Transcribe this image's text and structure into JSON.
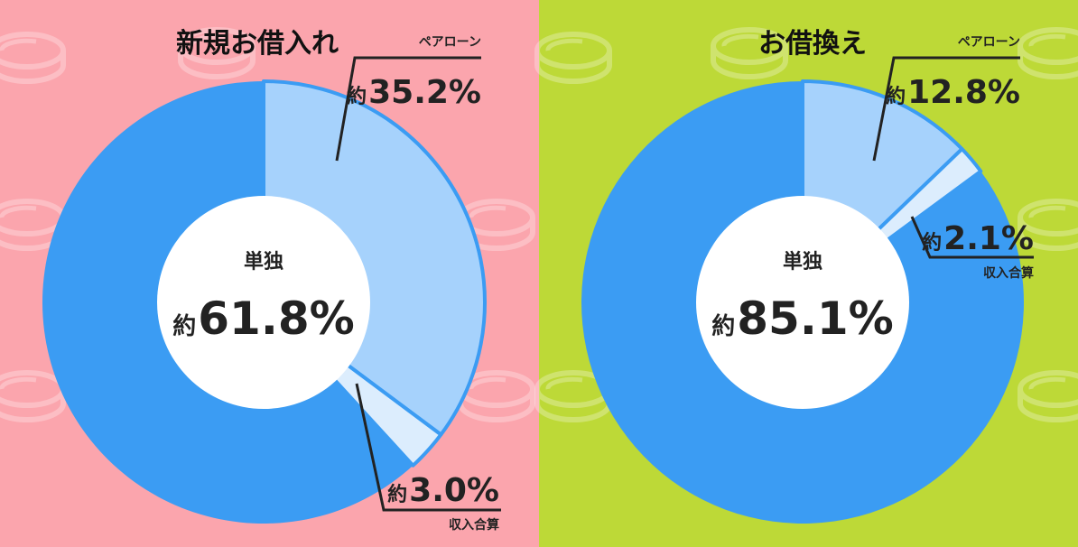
{
  "colors": {
    "left_bg": "#fba5ad",
    "right_bg": "#bdd937",
    "single": "#3b9cf3",
    "pair": "#a6d2fc",
    "combined": "#dcedfd",
    "center": "#ffffff"
  },
  "chart_data": [
    {
      "type": "pie",
      "title": "新規お借入れ",
      "center_label": "単独",
      "center_value": "約61.8%",
      "slices": [
        {
          "label": "ペアローン",
          "value": 35.2,
          "text": "約35.2%",
          "color_key": "pair"
        },
        {
          "label": "収入合算",
          "value": 3.0,
          "text": "約3.0%",
          "color_key": "combined"
        },
        {
          "label": "単独",
          "value": 61.8,
          "text": "約61.8%",
          "color_key": "single"
        }
      ]
    },
    {
      "type": "pie",
      "title": "お借換え",
      "center_label": "単独",
      "center_value": "約85.1%",
      "slices": [
        {
          "label": "ペアローン",
          "value": 12.8,
          "text": "約12.8%",
          "color_key": "pair"
        },
        {
          "label": "収入合算",
          "value": 2.1,
          "text": "約2.1%",
          "color_key": "combined"
        },
        {
          "label": "単独",
          "value": 85.1,
          "text": "約85.1%",
          "color_key": "single"
        }
      ]
    }
  ]
}
